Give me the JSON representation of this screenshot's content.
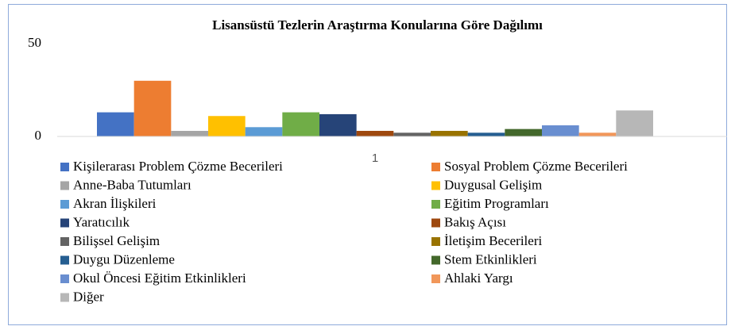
{
  "chart_data": {
    "type": "bar",
    "title": "Lisansüstü Tezlerin Araştırma Konularına Göre Dağılımı",
    "categories": [
      "1"
    ],
    "ylim": [
      0,
      50
    ],
    "yticks": [
      0,
      50
    ],
    "grid": false,
    "series": [
      {
        "name": "Kişilerarası Problem Çözme Becerileri",
        "color": "#4472C4",
        "values": [
          13
        ]
      },
      {
        "name": "Sosyal Problem Çözme Becerileri",
        "color": "#ED7D31",
        "values": [
          30
        ]
      },
      {
        "name": "Anne-Baba Tutumları",
        "color": "#A5A5A5",
        "values": [
          3
        ]
      },
      {
        "name": "Duygusal Gelişim",
        "color": "#FFC000",
        "values": [
          11
        ]
      },
      {
        "name": "Akran İlişkileri",
        "color": "#5B9BD5",
        "values": [
          5
        ]
      },
      {
        "name": "Eğitim Programları",
        "color": "#70AD47",
        "values": [
          13
        ]
      },
      {
        "name": "Yaratıcılık",
        "color": "#264478",
        "values": [
          12
        ]
      },
      {
        "name": "Bakış Açısı",
        "color": "#9E480E",
        "values": [
          3
        ]
      },
      {
        "name": "Bilişsel Gelişim",
        "color": "#636363",
        "values": [
          2
        ]
      },
      {
        "name": "İletişim Becerileri",
        "color": "#997300",
        "values": [
          3
        ]
      },
      {
        "name": "Duygu Düzenleme",
        "color": "#255E91",
        "values": [
          2
        ]
      },
      {
        "name": "Stem Etkinlikleri",
        "color": "#43682B",
        "values": [
          4
        ]
      },
      {
        "name": "Okul Öncesi Eğitim Etkinlikleri",
        "color": "#698ED0",
        "values": [
          6
        ]
      },
      {
        "name": "Ahlaki Yargı",
        "color": "#F1975A",
        "values": [
          2
        ]
      },
      {
        "name": "Diğer",
        "color": "#B7B7B7",
        "values": [
          14
        ]
      }
    ]
  }
}
